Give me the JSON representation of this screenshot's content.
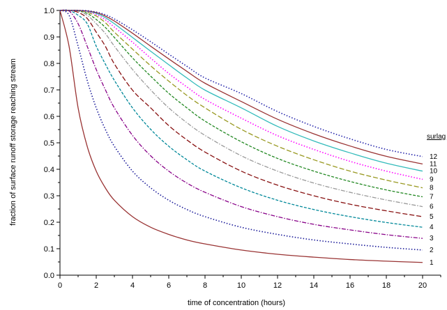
{
  "chart_data": {
    "type": "line",
    "title": "",
    "xlabel": "time of concentration (hours)",
    "ylabel": "fraction of surface runoff storage reaching stream",
    "xlim": [
      0,
      21
    ],
    "ylim": [
      0,
      1.0
    ],
    "x_ticks": [
      "0",
      "2",
      "4",
      "6",
      "8",
      "10",
      "12",
      "14",
      "16",
      "18",
      "20"
    ],
    "y_ticks": [
      "0.0",
      "0.1",
      "0.2",
      "0.3",
      "0.4",
      "0.5",
      "0.6",
      "0.7",
      "0.8",
      "0.9",
      "1.0"
    ],
    "grid": false,
    "legend_title": "surlag",
    "legend_placement": "right",
    "x": [
      0,
      0.5,
      1,
      1.5,
      2,
      2.5,
      3,
      4,
      5,
      6,
      7,
      8,
      10,
      12,
      14,
      16,
      18,
      20
    ],
    "series": [
      {
        "name": "1",
        "color": "#993333",
        "style": "solid",
        "values": [
          1.0,
          0.865,
          0.632,
          0.487,
          0.393,
          0.33,
          0.283,
          0.221,
          0.181,
          0.154,
          0.133,
          0.118,
          0.095,
          0.079,
          0.068,
          0.059,
          0.053,
          0.048
        ]
      },
      {
        "name": "2",
        "color": "#1a1a99",
        "style": "dotted",
        "values": [
          1.0,
          0.982,
          0.865,
          0.736,
          0.632,
          0.551,
          0.487,
          0.393,
          0.33,
          0.283,
          0.248,
          0.221,
          0.181,
          0.154,
          0.133,
          0.118,
          0.105,
          0.095
        ]
      },
      {
        "name": "3",
        "color": "#880088",
        "style": "dashdot",
        "values": [
          1.0,
          0.998,
          0.95,
          0.865,
          0.777,
          0.701,
          0.632,
          0.528,
          0.451,
          0.393,
          0.348,
          0.313,
          0.259,
          0.221,
          0.192,
          0.171,
          0.153,
          0.139
        ]
      },
      {
        "name": "4",
        "color": "#008899",
        "style": "dashed",
        "values": [
          1.0,
          1.0,
          0.982,
          0.95,
          0.865,
          0.798,
          0.736,
          0.632,
          0.551,
          0.487,
          0.436,
          0.393,
          0.33,
          0.283,
          0.248,
          0.221,
          0.199,
          0.181
        ]
      },
      {
        "name": "5",
        "color": "#881111",
        "style": "longdash",
        "values": [
          1.0,
          1.0,
          0.993,
          0.97,
          0.918,
          0.865,
          0.798,
          0.699,
          0.632,
          0.565,
          0.511,
          0.465,
          0.393,
          0.34,
          0.3,
          0.268,
          0.243,
          0.221
        ]
      },
      {
        "name": "6",
        "color": "#999999",
        "style": "dashdot",
        "values": [
          1.0,
          1.0,
          0.998,
          0.982,
          0.95,
          0.913,
          0.865,
          0.777,
          0.7,
          0.632,
          0.576,
          0.528,
          0.451,
          0.393,
          0.348,
          0.313,
          0.284,
          0.259
        ]
      },
      {
        "name": "7",
        "color": "#228822",
        "style": "dashed",
        "values": [
          1.0,
          1.0,
          0.999,
          0.989,
          0.966,
          0.936,
          0.898,
          0.821,
          0.752,
          0.687,
          0.632,
          0.582,
          0.504,
          0.441,
          0.393,
          0.354,
          0.322,
          0.296
        ]
      },
      {
        "name": "8",
        "color": "#999922",
        "style": "longdash",
        "values": [
          1.0,
          1.0,
          1.0,
          0.993,
          0.979,
          0.954,
          0.918,
          0.854,
          0.791,
          0.733,
          0.679,
          0.632,
          0.551,
          0.487,
          0.436,
          0.393,
          0.359,
          0.33
        ]
      },
      {
        "name": "9",
        "color": "#ff00ff",
        "style": "dotted",
        "values": [
          1.0,
          1.0,
          1.0,
          0.996,
          0.985,
          0.965,
          0.937,
          0.88,
          0.82,
          0.762,
          0.711,
          0.664,
          0.593,
          0.527,
          0.475,
          0.43,
          0.393,
          0.362
        ]
      },
      {
        "name": "10",
        "color": "#33bbbb",
        "style": "solid",
        "values": [
          1.0,
          1.0,
          1.0,
          0.997,
          0.989,
          0.973,
          0.95,
          0.898,
          0.846,
          0.795,
          0.745,
          0.699,
          0.632,
          0.562,
          0.507,
          0.462,
          0.423,
          0.393
        ]
      },
      {
        "name": "11",
        "color": "#993333",
        "style": "solid",
        "values": [
          1.0,
          1.0,
          1.0,
          0.998,
          0.992,
          0.979,
          0.96,
          0.914,
          0.865,
          0.817,
          0.77,
          0.725,
          0.656,
          0.589,
          0.534,
          0.488,
          0.449,
          0.42
        ]
      },
      {
        "name": "12",
        "color": "#2222aa",
        "style": "dotted",
        "values": [
          1.0,
          1.0,
          1.0,
          0.999,
          0.994,
          0.984,
          0.968,
          0.927,
          0.882,
          0.835,
          0.789,
          0.745,
          0.686,
          0.618,
          0.562,
          0.515,
          0.475,
          0.448
        ]
      }
    ]
  }
}
